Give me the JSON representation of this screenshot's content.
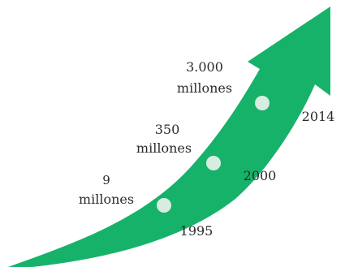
{
  "arrow_color": "#17b26a",
  "marker_color": "#d9ece0",
  "milestones": [
    {
      "value_line1": "9",
      "value_line2": "millones",
      "year": "1995"
    },
    {
      "value_line1": "350",
      "value_line2": "millones",
      "year": "2000"
    },
    {
      "value_line1": "3.000",
      "value_line2": "millones",
      "year": "2014"
    }
  ]
}
